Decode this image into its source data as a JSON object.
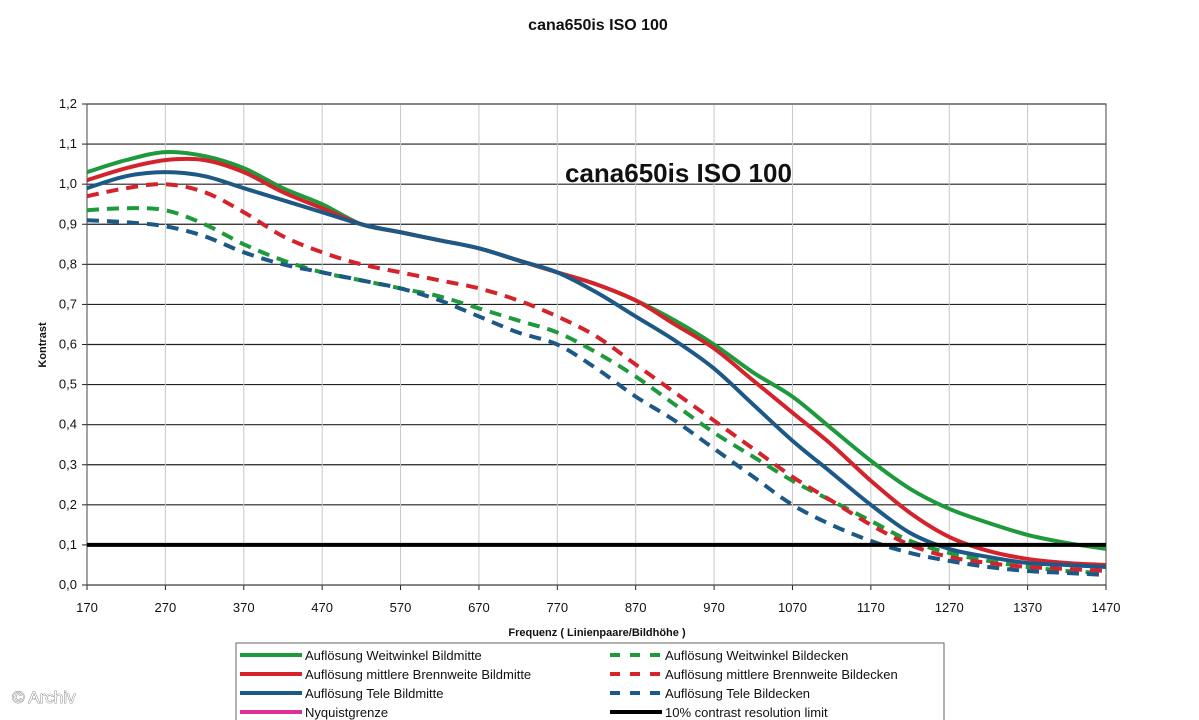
{
  "chart_data": {
    "type": "line",
    "title": "cana650is ISO 100",
    "inner_title": "cana650is ISO 100",
    "xlabel": "Frequenz ( Linienpaare/Bildhöhe )",
    "ylabel": "Kontrast",
    "xlim": [
      170,
      1470
    ],
    "ylim": [
      0,
      1.2
    ],
    "x_ticks": [
      "170",
      "270",
      "370",
      "470",
      "570",
      "670",
      "770",
      "870",
      "970",
      "1070",
      "1170",
      "1270",
      "1370",
      "1470"
    ],
    "y_ticks": [
      "0,0",
      "0,1",
      "0,2",
      "0,3",
      "0,4",
      "0,5",
      "0,6",
      "0,7",
      "0,8",
      "0,9",
      "1,0",
      "1,1",
      "1,2"
    ],
    "grid": "horizontal",
    "legend_position": "bottom",
    "watermark": "© Archiv",
    "series": [
      {
        "name": "Auflösung Weitwinkel Bildmitte",
        "color": "#1e9a3c",
        "dash": "solid",
        "x": [
          170,
          220,
          270,
          320,
          370,
          420,
          470,
          520,
          570,
          620,
          670,
          720,
          770,
          820,
          870,
          920,
          970,
          1020,
          1070,
          1120,
          1170,
          1220,
          1270,
          1320,
          1370,
          1420,
          1470
        ],
        "y": [
          1.03,
          1.06,
          1.08,
          1.07,
          1.04,
          0.99,
          0.95,
          0.9,
          0.88,
          0.86,
          0.84,
          0.81,
          0.78,
          0.75,
          0.71,
          0.66,
          0.6,
          0.53,
          0.47,
          0.39,
          0.31,
          0.24,
          0.19,
          0.155,
          0.125,
          0.105,
          0.09
        ]
      },
      {
        "name": "Auflösung mittlere Brennweite Bildmitte",
        "color": "#d4232b",
        "dash": "solid",
        "x": [
          170,
          220,
          270,
          320,
          370,
          420,
          470,
          520,
          570,
          620,
          670,
          720,
          770,
          820,
          870,
          920,
          970,
          1020,
          1070,
          1120,
          1170,
          1220,
          1270,
          1320,
          1370,
          1420,
          1470
        ],
        "y": [
          1.01,
          1.04,
          1.06,
          1.06,
          1.03,
          0.98,
          0.94,
          0.9,
          0.88,
          0.86,
          0.84,
          0.81,
          0.78,
          0.75,
          0.71,
          0.65,
          0.59,
          0.51,
          0.43,
          0.35,
          0.26,
          0.18,
          0.12,
          0.085,
          0.065,
          0.055,
          0.05
        ]
      },
      {
        "name": "Auflösung Tele Bildmitte",
        "color": "#1d5987",
        "dash": "solid",
        "x": [
          170,
          220,
          270,
          320,
          370,
          420,
          470,
          520,
          570,
          620,
          670,
          720,
          770,
          820,
          870,
          920,
          970,
          1020,
          1070,
          1120,
          1170,
          1220,
          1270,
          1320,
          1370,
          1420,
          1470
        ],
        "y": [
          0.99,
          1.02,
          1.03,
          1.02,
          0.99,
          0.96,
          0.93,
          0.9,
          0.88,
          0.86,
          0.84,
          0.81,
          0.78,
          0.73,
          0.67,
          0.61,
          0.54,
          0.45,
          0.36,
          0.28,
          0.2,
          0.13,
          0.09,
          0.07,
          0.055,
          0.05,
          0.045
        ]
      },
      {
        "name": "Nyquistgrenze",
        "color": "#e0309a",
        "dash": "solid",
        "x": [],
        "y": []
      },
      {
        "name": "Auflösung Weitwinkel Bildecken",
        "color": "#1e9a3c",
        "dash": "dashed",
        "x": [
          170,
          220,
          270,
          320,
          370,
          420,
          470,
          520,
          570,
          620,
          670,
          720,
          770,
          820,
          870,
          920,
          970,
          1020,
          1070,
          1120,
          1170,
          1220,
          1270,
          1320,
          1370,
          1420,
          1470
        ],
        "y": [
          0.935,
          0.94,
          0.935,
          0.9,
          0.85,
          0.81,
          0.78,
          0.76,
          0.74,
          0.72,
          0.69,
          0.66,
          0.63,
          0.58,
          0.52,
          0.45,
          0.38,
          0.32,
          0.26,
          0.21,
          0.16,
          0.11,
          0.08,
          0.06,
          0.045,
          0.035,
          0.03
        ]
      },
      {
        "name": "Auflösung mittlere Brennweite Bildecken",
        "color": "#d4232b",
        "dash": "dashed",
        "x": [
          170,
          220,
          270,
          320,
          370,
          420,
          470,
          520,
          570,
          620,
          670,
          720,
          770,
          820,
          870,
          920,
          970,
          1020,
          1070,
          1120,
          1170,
          1220,
          1270,
          1320,
          1370,
          1420,
          1470
        ],
        "y": [
          0.97,
          0.99,
          1.0,
          0.98,
          0.93,
          0.87,
          0.83,
          0.8,
          0.78,
          0.76,
          0.74,
          0.71,
          0.67,
          0.62,
          0.55,
          0.48,
          0.41,
          0.34,
          0.27,
          0.21,
          0.15,
          0.1,
          0.07,
          0.055,
          0.045,
          0.04,
          0.035
        ]
      },
      {
        "name": "Auflösung Tele Bildecken",
        "color": "#1d5987",
        "dash": "dashed",
        "x": [
          170,
          220,
          270,
          320,
          370,
          420,
          470,
          520,
          570,
          620,
          670,
          720,
          770,
          820,
          870,
          920,
          970,
          1020,
          1070,
          1120,
          1170,
          1220,
          1270,
          1320,
          1370,
          1420,
          1470
        ],
        "y": [
          0.91,
          0.905,
          0.895,
          0.87,
          0.83,
          0.8,
          0.78,
          0.76,
          0.74,
          0.71,
          0.67,
          0.63,
          0.6,
          0.54,
          0.47,
          0.41,
          0.34,
          0.27,
          0.2,
          0.15,
          0.11,
          0.08,
          0.06,
          0.045,
          0.035,
          0.03,
          0.025
        ]
      },
      {
        "name": "10% contrast resolution limit",
        "color": "#000000",
        "dash": "solid",
        "x": [
          170,
          1470
        ],
        "y": [
          0.1,
          0.1
        ]
      }
    ]
  }
}
